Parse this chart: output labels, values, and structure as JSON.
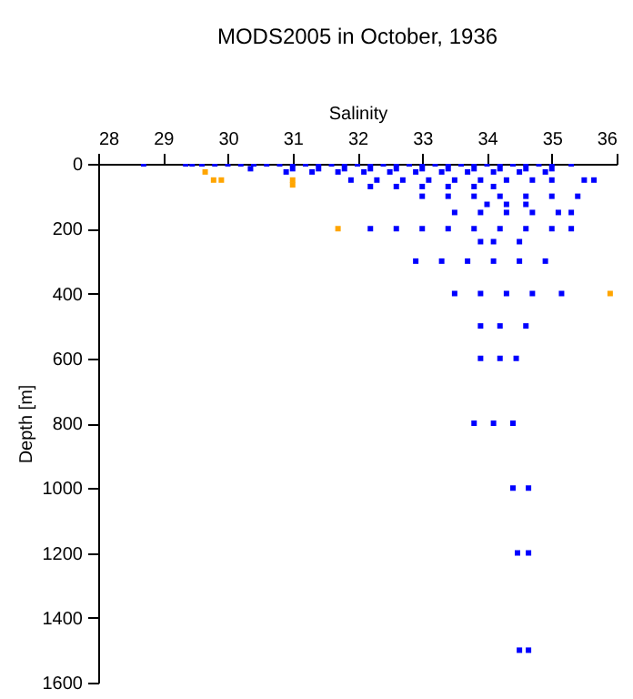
{
  "chart_data": {
    "type": "scatter",
    "title": "MODS2005 in October, 1936",
    "xlabel": "Salinity",
    "ylabel": "Depth [m]",
    "xlim": [
      28,
      36
    ],
    "xticks": [
      28,
      29,
      30,
      31,
      32,
      33,
      34,
      35,
      36
    ],
    "ylim": [
      1600,
      0
    ],
    "yticks": [
      0,
      200,
      400,
      600,
      800,
      1000,
      1200,
      1400,
      1600
    ],
    "marker": "square",
    "series": [
      {
        "color": "#0000ff",
        "x": [
          28.7,
          29.35,
          29.45,
          29.6,
          29.8,
          30.0,
          30.2,
          30.4,
          30.6,
          30.8,
          31.0,
          31.2,
          31.4,
          31.6,
          31.8,
          32.0,
          32.2,
          32.4,
          32.6,
          32.8,
          33.0,
          33.2,
          33.4,
          33.6,
          33.8,
          34.0,
          34.2,
          34.4,
          34.6,
          34.8,
          35.0,
          35.3,
          30.35,
          31.0,
          31.4,
          31.8,
          32.2,
          32.6,
          33.0,
          33.4,
          33.8,
          34.2,
          34.6,
          35.0,
          30.9,
          31.3,
          31.7,
          32.1,
          32.5,
          32.9,
          33.3,
          33.7,
          34.1,
          34.5,
          34.9,
          31.9,
          32.3,
          32.7,
          33.1,
          33.5,
          33.9,
          34.3,
          34.7,
          35.0,
          35.5,
          35.65,
          32.2,
          32.6,
          33.0,
          33.4,
          33.8,
          34.1,
          33.0,
          33.4,
          33.8,
          34.2,
          34.6,
          35.0,
          35.4,
          34.0,
          34.3,
          34.6,
          33.5,
          33.9,
          34.3,
          34.7,
          35.1,
          35.3,
          32.2,
          32.6,
          33.0,
          33.4,
          33.8,
          34.2,
          34.6,
          35.0,
          35.3,
          33.9,
          34.1,
          34.5,
          32.9,
          33.3,
          33.7,
          34.1,
          34.5,
          34.9,
          33.5,
          33.9,
          34.3,
          34.7,
          35.15,
          33.9,
          34.2,
          34.6,
          33.9,
          34.2,
          34.45,
          33.8,
          34.1,
          34.4,
          34.4,
          34.64,
          34.47,
          34.64,
          34.5,
          34.64
        ],
        "values": [
          0,
          0,
          0,
          0,
          0,
          0,
          0,
          0,
          0,
          0,
          0,
          0,
          0,
          0,
          0,
          0,
          0,
          0,
          0,
          0,
          0,
          0,
          0,
          0,
          0,
          0,
          0,
          0,
          0,
          0,
          0,
          0,
          15,
          15,
          15,
          15,
          15,
          15,
          15,
          15,
          15,
          15,
          15,
          15,
          25,
          25,
          25,
          25,
          25,
          25,
          25,
          25,
          25,
          25,
          25,
          50,
          50,
          50,
          50,
          50,
          50,
          50,
          50,
          50,
          50,
          50,
          70,
          70,
          70,
          70,
          70,
          70,
          100,
          100,
          100,
          100,
          100,
          100,
          100,
          125,
          125,
          125,
          150,
          150,
          150,
          150,
          150,
          150,
          200,
          200,
          200,
          200,
          200,
          200,
          200,
          200,
          200,
          240,
          240,
          240,
          300,
          300,
          300,
          300,
          300,
          300,
          400,
          400,
          400,
          400,
          400,
          500,
          500,
          500,
          600,
          600,
          600,
          800,
          800,
          800,
          1000,
          1000,
          1200,
          1200,
          1500,
          1500
        ]
      },
      {
        "color": "#ffa500",
        "x": [
          29.65,
          29.78,
          29.9,
          31.0,
          31.0,
          31.7,
          35.9
        ],
        "values": [
          25,
          50,
          50,
          50,
          65,
          200,
          400
        ]
      }
    ]
  }
}
